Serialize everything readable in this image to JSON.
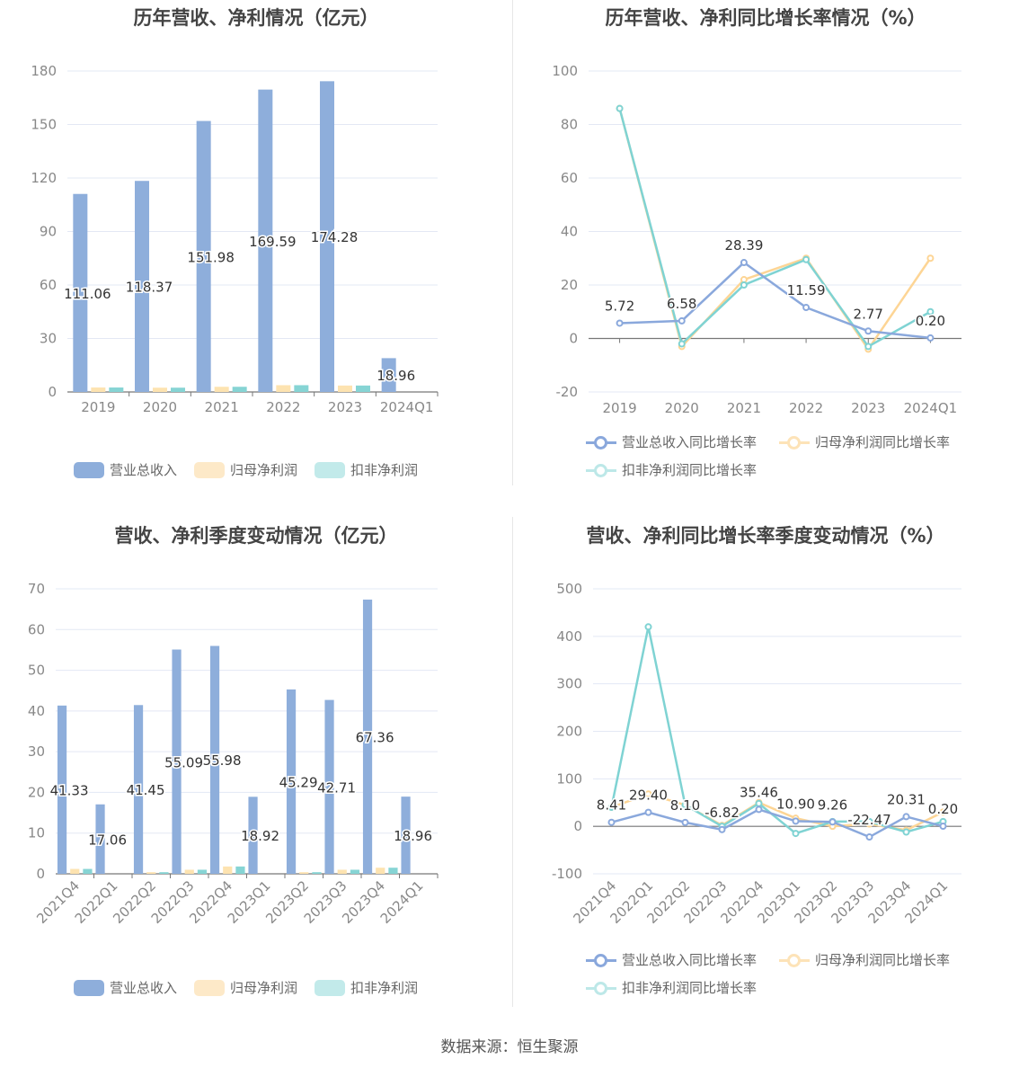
{
  "source_note": "数据来源：恒生聚源",
  "colors": {
    "revenue": "#8eaedb",
    "net_profit": "#fde3b0",
    "deducted_profit": "#bde8e8",
    "net_line": "#fdd595",
    "deducted_line": "#7fd3d3",
    "revenue_line": "#8aa8dc"
  },
  "chart_data": [
    {
      "type": "bar",
      "title": "历年营收、净利情况（亿元）",
      "categories": [
        "2019",
        "2020",
        "2021",
        "2022",
        "2023",
        "2024Q1"
      ],
      "ylim": [
        0,
        180
      ],
      "yticks": [
        0,
        30,
        60,
        90,
        120,
        150,
        180
      ],
      "grid": true,
      "legend_position": "bottom",
      "series": [
        {
          "name": "营业总收入",
          "values": [
            111.06,
            118.37,
            151.98,
            169.59,
            174.28,
            18.96
          ],
          "labels": [
            "111.06",
            "118.37",
            "151.98",
            "169.59",
            "174.28",
            "18.96"
          ]
        },
        {
          "name": "归母净利润",
          "values": [
            2.5,
            2.4,
            2.9,
            3.8,
            3.6,
            0
          ]
        },
        {
          "name": "扣非净利润",
          "values": [
            2.5,
            2.4,
            2.9,
            3.8,
            3.6,
            0
          ]
        }
      ]
    },
    {
      "type": "line",
      "title": "历年营收、净利同比增长率情况（%）",
      "categories": [
        "2019",
        "2020",
        "2021",
        "2022",
        "2023",
        "2024Q1"
      ],
      "ylim": [
        -20,
        100
      ],
      "yticks": [
        -20,
        0,
        20,
        40,
        60,
        80,
        100
      ],
      "grid": true,
      "legend_position": "bottom",
      "series": [
        {
          "name": "营业总收入同比增长率",
          "values": [
            5.72,
            6.58,
            28.39,
            11.59,
            2.77,
            0.2
          ],
          "labels": [
            "5.72",
            "6.58",
            "28.39",
            "11.59",
            "2.77",
            "0.20"
          ]
        },
        {
          "name": "归母净利润同比增长率",
          "values": [
            86,
            -3,
            22,
            30,
            -4,
            30
          ]
        },
        {
          "name": "扣非净利润同比增长率",
          "values": [
            86,
            -2,
            20,
            29.5,
            -3,
            10
          ]
        }
      ]
    },
    {
      "type": "bar",
      "title": "营收、净利季度变动情况（亿元）",
      "categories": [
        "2021Q4",
        "2022Q1",
        "2022Q2",
        "2022Q3",
        "2022Q4",
        "2023Q1",
        "2023Q2",
        "2023Q3",
        "2023Q4",
        "2024Q1"
      ],
      "ylim": [
        0,
        70
      ],
      "yticks": [
        0,
        10,
        20,
        30,
        40,
        50,
        60,
        70
      ],
      "grid": true,
      "legend_position": "bottom",
      "series": [
        {
          "name": "营业总收入",
          "values": [
            41.33,
            17.06,
            41.45,
            55.09,
            55.98,
            18.92,
            45.29,
            42.71,
            67.36,
            18.96
          ],
          "labels": [
            "41.33",
            "17.06",
            "41.45",
            "55.09",
            "55.98",
            "18.92",
            "45.29",
            "42.71",
            "67.36",
            "18.96"
          ]
        },
        {
          "name": "归母净利润",
          "values": [
            1.2,
            0,
            0.4,
            1.0,
            1.8,
            0,
            0.4,
            1.0,
            1.5,
            0
          ]
        },
        {
          "name": "扣非净利润",
          "values": [
            1.2,
            0,
            0.4,
            1.0,
            1.8,
            0,
            0.4,
            1.0,
            1.5,
            0
          ]
        }
      ]
    },
    {
      "type": "line",
      "title": "营收、净利同比增长率季度变动情况（%）",
      "categories": [
        "2021Q4",
        "2022Q1",
        "2022Q2",
        "2022Q3",
        "2022Q4",
        "2023Q1",
        "2023Q2",
        "2023Q3",
        "2023Q4",
        "2024Q1"
      ],
      "ylim": [
        -100,
        500
      ],
      "yticks": [
        -100,
        0,
        100,
        200,
        300,
        400,
        500
      ],
      "grid": true,
      "legend_position": "bottom",
      "series": [
        {
          "name": "营业总收入同比增长率",
          "values": [
            8.41,
            29.4,
            8.1,
            -6.82,
            35.46,
            10.9,
            9.26,
            -22.47,
            20.31,
            0.2
          ],
          "labels": [
            "8.41",
            "29.40",
            "8.10",
            "-6.82",
            "35.46",
            "10.90",
            "9.26",
            "-22.47",
            "20.31",
            "0.20"
          ]
        },
        {
          "name": "归母净利润同比增长率",
          "values": [
            40,
            68,
            45,
            2,
            50,
            17,
            0,
            5,
            -8,
            30
          ]
        },
        {
          "name": "扣非净利润同比增长率",
          "values": [
            40,
            420,
            45,
            0,
            48,
            -15,
            10,
            10,
            -12,
            10
          ]
        }
      ]
    }
  ]
}
